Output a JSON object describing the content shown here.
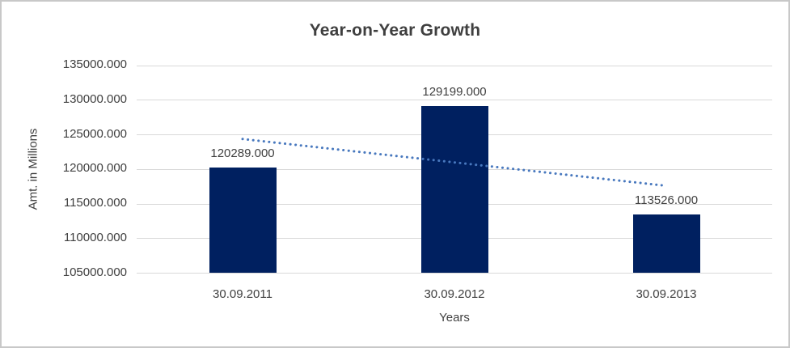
{
  "chart_data": {
    "type": "bar",
    "title": "Year-on-Year Growth",
    "xlabel": "Years",
    "ylabel": "Amt. in Millions",
    "categories": [
      "30.09.2011",
      "30.09.2012",
      "30.09.2013"
    ],
    "values": [
      120289,
      129199,
      113526
    ],
    "data_labels": [
      "120289.000",
      "129199.000",
      "113526.000"
    ],
    "y_ticks": [
      "135000.000",
      "130000.000",
      "125000.000",
      "120000.000",
      "115000.000",
      "110000.000",
      "105000.000"
    ],
    "ylim": [
      105000,
      135000
    ],
    "grid": true,
    "legend": "none",
    "bar_color": "#002060",
    "trendline": {
      "type": "linear",
      "style": "dotted",
      "color": "#4878be"
    },
    "gridline_color": "#d9d9d9",
    "text_color": "#404040"
  }
}
